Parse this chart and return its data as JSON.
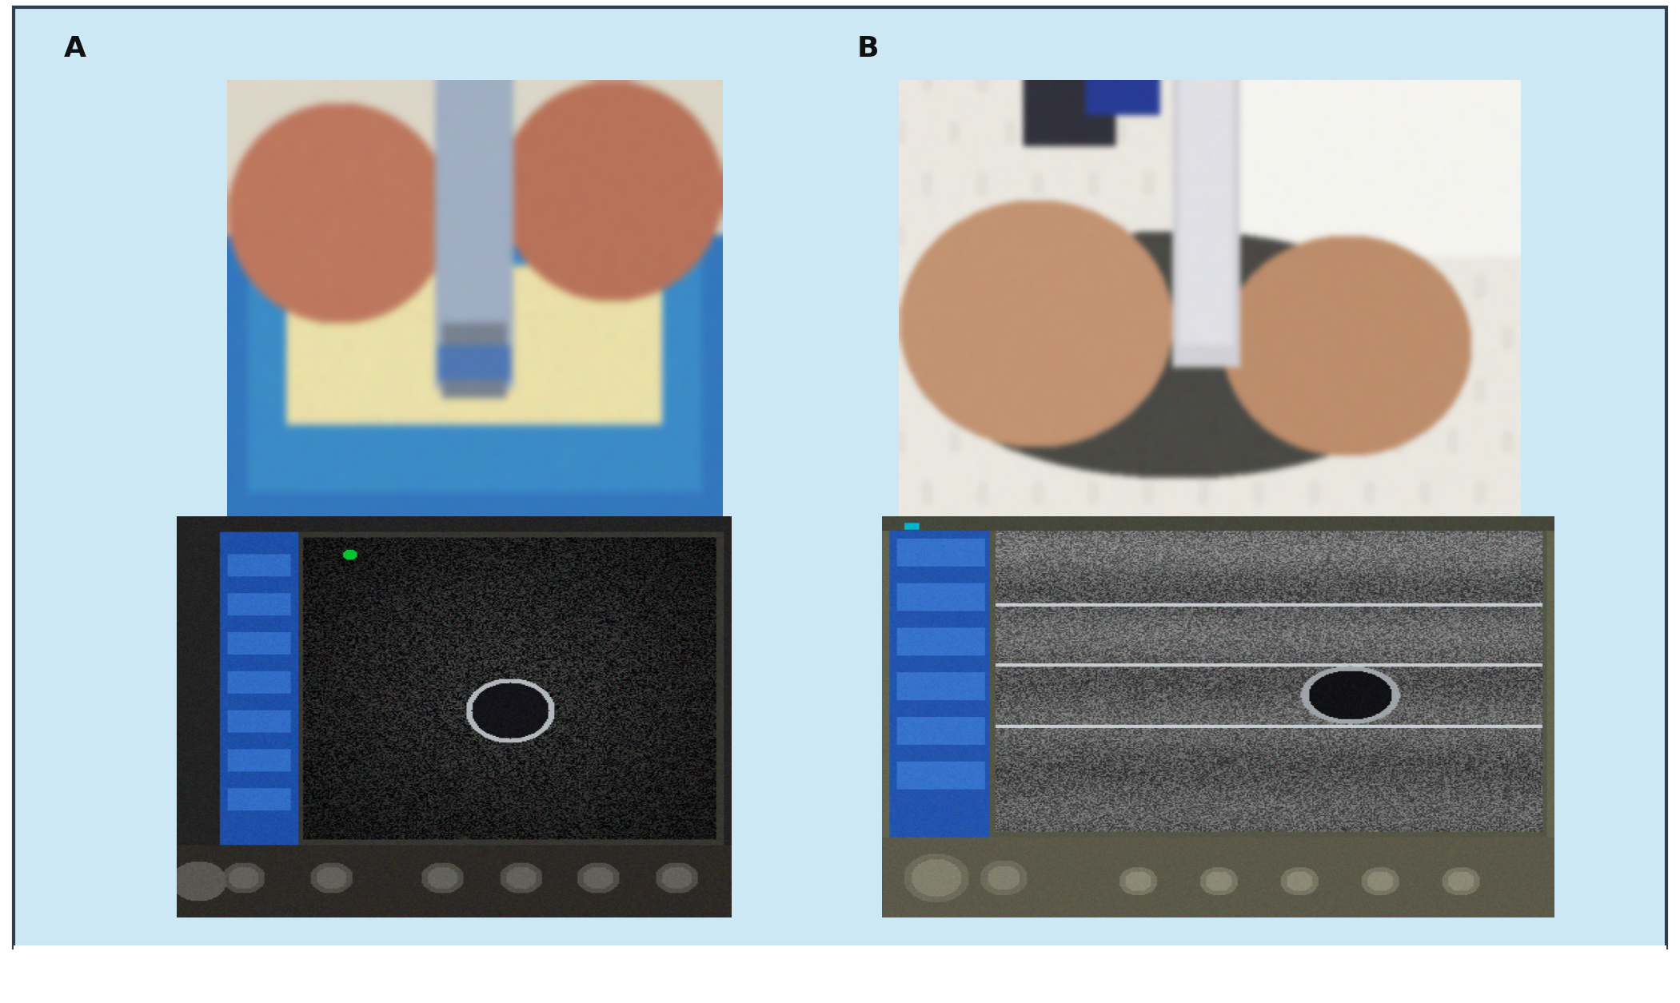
{
  "background_color": "#cce8f4",
  "border_color": "#2c3e50",
  "border_linewidth": 3,
  "outer_bg": "#ffffff",
  "label_A": "A",
  "label_B": "B",
  "label_fontsize": 26,
  "label_fontweight": "bold",
  "label_color": "#111111",
  "fig_width": 21.01,
  "fig_height": 12.55
}
